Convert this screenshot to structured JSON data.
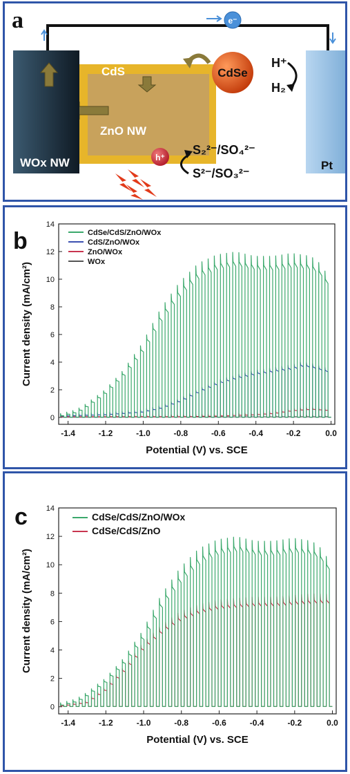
{
  "panel_a": {
    "letter": "a",
    "wox_label": "WOx NW",
    "cds_label": "CdS",
    "zno_label": "ZnO  NW",
    "cdse_label": "CdSe",
    "pt_label": "Pt",
    "electron_label": "e⁻",
    "hole_label": "h⁺",
    "hplus_label": "H⁺",
    "h2_label": "H₂",
    "sulfate_label": "S₂²⁻/SO₄²⁻",
    "sulfite_label": "S²⁻/SO₃²⁻",
    "colors": {
      "wox": "#1a2a3a",
      "cds": "#e7b52a",
      "zno": "#c8a25c",
      "cdse": "#e2561a",
      "pt": "#9cc3e6",
      "border": "#2f55a8",
      "arrow": "#8a7a3a"
    }
  },
  "chart_data": [
    {
      "type": "line",
      "panel_letter": "b",
      "xlabel": "Potential (V) vs. SCE",
      "ylabel": "Current density (mA/cm²)",
      "xlim": [
        -1.45,
        0.02
      ],
      "ylim": [
        -0.5,
        14
      ],
      "xticks": [
        -1.4,
        -1.2,
        -1.0,
        -0.8,
        -0.6,
        -0.4,
        -0.2,
        0.0
      ],
      "xtick_labels": [
        "-1.4",
        "-1.2",
        "-1.0",
        "-0.8",
        "-0.6",
        "-0.4",
        "-0.2",
        "0.0"
      ],
      "yticks": [
        0,
        2,
        4,
        6,
        8,
        10,
        12,
        14
      ],
      "ytick_labels": [
        "0",
        "2",
        "4",
        "6",
        "8",
        "10",
        "12",
        "14"
      ],
      "grid": false,
      "legend_position": "top-left",
      "chopped_light": true,
      "series": [
        {
          "name": "CdSe/CdS/ZnO/WOx",
          "color": "#3aa86b",
          "envelope_x": [
            -1.44,
            -1.35,
            -1.3,
            -1.2,
            -1.1,
            -1.0,
            -0.9,
            -0.8,
            -0.7,
            -0.6,
            -0.5,
            -0.4,
            -0.3,
            -0.2,
            -0.1,
            -0.05,
            0.0
          ],
          "envelope_y": [
            0.1,
            0.4,
            0.8,
            1.8,
            3.2,
            5.0,
            7.4,
            9.2,
            10.5,
            11.1,
            11.3,
            11.0,
            11.0,
            11.2,
            11.0,
            10.5,
            9.5
          ]
        },
        {
          "name": "CdS/ZnO/WOx",
          "color": "#3b4fb0",
          "envelope_x": [
            -1.44,
            -1.2,
            -1.0,
            -0.9,
            -0.8,
            -0.7,
            -0.6,
            -0.5,
            -0.4,
            -0.3,
            -0.2,
            -0.15,
            -0.1,
            -0.05,
            0.0
          ],
          "envelope_y": [
            0.1,
            0.2,
            0.4,
            0.7,
            1.2,
            1.9,
            2.5,
            2.9,
            3.2,
            3.4,
            3.6,
            3.8,
            3.7,
            3.5,
            3.3
          ]
        },
        {
          "name": "ZnO/WOx",
          "color": "#c8354f",
          "envelope_x": [
            -1.44,
            -0.8,
            -0.6,
            -0.4,
            -0.3,
            -0.2,
            -0.1,
            0.0
          ],
          "envelope_y": [
            0.05,
            0.05,
            0.1,
            0.2,
            0.3,
            0.5,
            0.6,
            0.5
          ]
        },
        {
          "name": "WOx",
          "color": "#555555",
          "envelope_x": [
            -1.44,
            0.0
          ],
          "envelope_y": [
            0.02,
            0.05
          ]
        }
      ]
    },
    {
      "type": "line",
      "panel_letter": "c",
      "xlabel": "Potential (V) vs. SCE",
      "ylabel": "Current density (mA/cm²)",
      "xlim": [
        -1.45,
        0.02
      ],
      "ylim": [
        -0.5,
        14
      ],
      "xticks": [
        -1.4,
        -1.2,
        -1.0,
        -0.8,
        -0.6,
        -0.4,
        -0.2,
        0.0
      ],
      "xtick_labels": [
        "-1.4",
        "-1.2",
        "-1.0",
        "-0.8",
        "-0.6",
        "-0.4",
        "-0.2",
        "0.0"
      ],
      "yticks": [
        0,
        2,
        4,
        6,
        8,
        10,
        12,
        14
      ],
      "ytick_labels": [
        "0",
        "2",
        "4",
        "6",
        "8",
        "10",
        "12",
        "14"
      ],
      "grid": false,
      "legend_position": "top-left",
      "chopped_light": true,
      "series": [
        {
          "name": "CdSe/CdS/ZnO/WOx",
          "color": "#3aa86b",
          "envelope_x": [
            -1.44,
            -1.35,
            -1.3,
            -1.2,
            -1.1,
            -1.0,
            -0.9,
            -0.8,
            -0.7,
            -0.6,
            -0.5,
            -0.4,
            -0.3,
            -0.2,
            -0.1,
            -0.05,
            0.0
          ],
          "envelope_y": [
            0.1,
            0.4,
            0.8,
            1.8,
            3.2,
            5.0,
            7.4,
            9.2,
            10.5,
            11.1,
            11.3,
            11.0,
            11.0,
            11.2,
            11.0,
            10.5,
            9.5
          ]
        },
        {
          "name": "CdSe/CdS/ZnO",
          "color": "#c8354f",
          "envelope_x": [
            -1.44,
            -1.3,
            -1.2,
            -1.1,
            -1.0,
            -0.9,
            -0.8,
            -0.7,
            -0.6,
            -0.5,
            -0.4,
            -0.3,
            -0.2,
            -0.1,
            0.0
          ],
          "envelope_y": [
            0.05,
            0.3,
            1.2,
            2.6,
            4.2,
            5.4,
            6.3,
            6.8,
            7.1,
            7.2,
            7.3,
            7.3,
            7.4,
            7.5,
            7.5
          ]
        }
      ]
    }
  ]
}
